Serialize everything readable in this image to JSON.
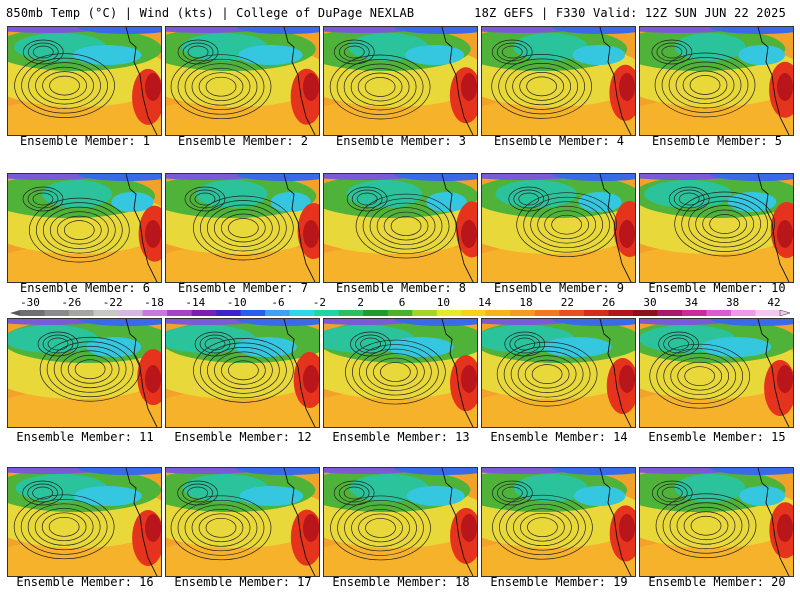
{
  "header": {
    "left": "850mb Temp (°C) | Wind (kts) | College of DuPage NEXLAB",
    "right": "18Z GEFS | F330 Valid: 12Z SUN JUN 22 2025"
  },
  "colorbar": {
    "labels": [
      "-30",
      "-26",
      "-22",
      "-18",
      "-14",
      "-10",
      "-6",
      "-2",
      "2",
      "6",
      "10",
      "14",
      "18",
      "22",
      "26",
      "30",
      "34",
      "38",
      "42"
    ],
    "colors": [
      "#6f6f6f",
      "#8a8a8a",
      "#a5a5a5",
      "#c7c7c7",
      "#d8b5e3",
      "#c57ad8",
      "#a542c6",
      "#7a1fb5",
      "#3b22c9",
      "#2a5cf0",
      "#3fa0f5",
      "#30d6e6",
      "#1fd6a0",
      "#2dbf5e",
      "#1e9a2e",
      "#4fb02b",
      "#a2d42a",
      "#e8e82a",
      "#f7d21b",
      "#f8b21a",
      "#f59a1d",
      "#f1781c",
      "#ea4e1f",
      "#d92b1d",
      "#b3161a",
      "#8c1218",
      "#a8186d",
      "#c92c9a",
      "#dd5ad0",
      "#ee9ae8",
      "#f6c6f0"
    ]
  },
  "panels": [
    {
      "label": "Ensemble Member: 1"
    },
    {
      "label": "Ensemble Member: 2"
    },
    {
      "label": "Ensemble Member: 3"
    },
    {
      "label": "Ensemble Member: 4"
    },
    {
      "label": "Ensemble Member: 5"
    },
    {
      "label": "Ensemble Member: 6"
    },
    {
      "label": "Ensemble Member: 7"
    },
    {
      "label": "Ensemble Member: 8"
    },
    {
      "label": "Ensemble Member: 9"
    },
    {
      "label": "Ensemble Member: 10"
    },
    {
      "label": "Ensemble Member: 11"
    },
    {
      "label": "Ensemble Member: 12"
    },
    {
      "label": "Ensemble Member: 13"
    },
    {
      "label": "Ensemble Member: 14"
    },
    {
      "label": "Ensemble Member: 15"
    },
    {
      "label": "Ensemble Member: 16"
    },
    {
      "label": "Ensemble Member: 17"
    },
    {
      "label": "Ensemble Member: 18"
    },
    {
      "label": "Ensemble Member: 19"
    },
    {
      "label": "Ensemble Member: 20"
    }
  ]
}
